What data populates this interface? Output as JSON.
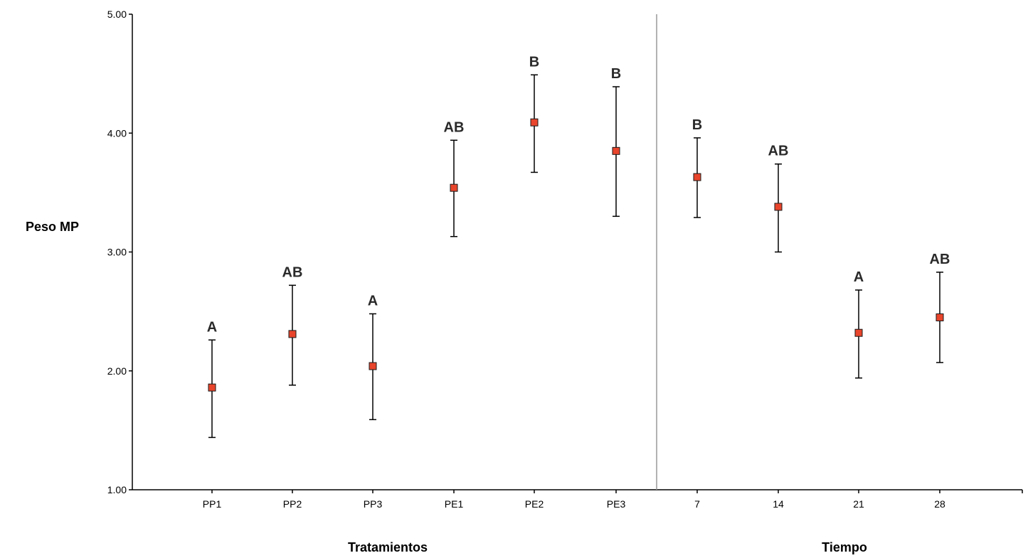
{
  "chart_data": {
    "type": "scatter",
    "title": "",
    "ylabel": "Peso MP",
    "ylim": [
      1,
      5
    ],
    "yticks": [
      "1.00",
      "2.00",
      "3.00",
      "4.00",
      "5.00"
    ],
    "groups": [
      {
        "label": "Tratamientos",
        "categories": [
          "PP1",
          "PP2",
          "PP3",
          "PE1",
          "PE2",
          "PE3"
        ]
      },
      {
        "label": "Tiempo",
        "categories": [
          "7",
          "14",
          "21",
          "28"
        ]
      }
    ],
    "points": [
      {
        "category": "PP1",
        "mean": 1.86,
        "lower": 1.44,
        "upper": 2.26,
        "letter": "A"
      },
      {
        "category": "PP2",
        "mean": 2.31,
        "lower": 1.88,
        "upper": 2.72,
        "letter": "AB"
      },
      {
        "category": "PP3",
        "mean": 2.04,
        "lower": 1.59,
        "upper": 2.48,
        "letter": "A"
      },
      {
        "category": "PE1",
        "mean": 3.54,
        "lower": 3.13,
        "upper": 3.94,
        "letter": "AB"
      },
      {
        "category": "PE2",
        "mean": 4.09,
        "lower": 3.67,
        "upper": 4.49,
        "letter": "B"
      },
      {
        "category": "PE3",
        "mean": 3.85,
        "lower": 3.3,
        "upper": 4.39,
        "letter": "B"
      },
      {
        "category": "7",
        "mean": 3.63,
        "lower": 3.29,
        "upper": 3.96,
        "letter": "B"
      },
      {
        "category": "14",
        "mean": 3.38,
        "lower": 3.0,
        "upper": 3.74,
        "letter": "AB"
      },
      {
        "category": "21",
        "mean": 2.32,
        "lower": 1.94,
        "upper": 2.68,
        "letter": "A"
      },
      {
        "category": "28",
        "mean": 2.45,
        "lower": 2.07,
        "upper": 2.83,
        "letter": "AB"
      }
    ],
    "marker_color": "#e8452c",
    "marker_border": "#1a1a1a",
    "errorbar_color": "#000000",
    "separator_color": "#999999",
    "grid": false,
    "legend": "none"
  }
}
